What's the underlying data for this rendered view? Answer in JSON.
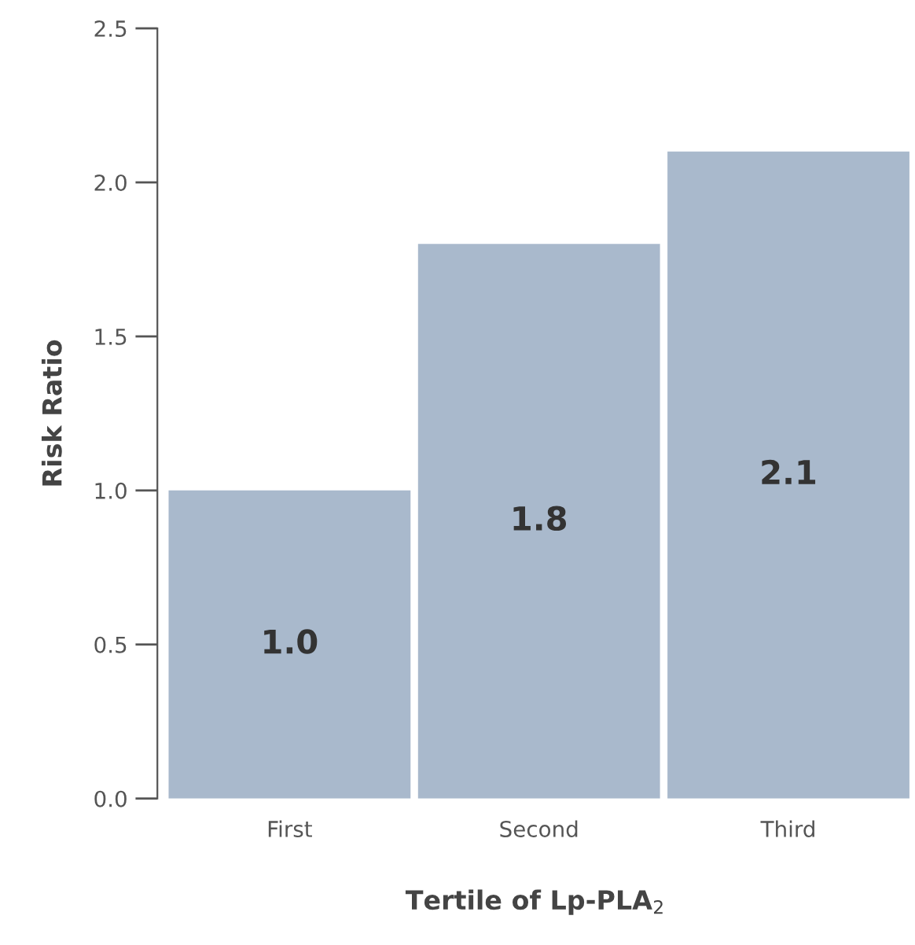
{
  "chart_data": {
    "type": "bar",
    "xlabel": "Tertile of Lp-PLA$_{2}$",
    "ylabel": "Risk Ratio",
    "categories": [
      "First",
      "Second",
      "Third"
    ],
    "values": [
      1.0,
      1.8,
      2.1
    ],
    "color": "#a9b9cc",
    "ylim": [
      0,
      2.5
    ],
    "yticks": [
      {
        "value": 0,
        "label": "0.0"
      },
      0.5,
      {
        "value": 1,
        "label": "1.0"
      },
      1.5,
      {
        "value": 2,
        "label": "2.0"
      },
      2.5
    ],
    "value_labels": [
      "1.0",
      "1.8",
      "2.1"
    ],
    "grid": false,
    "legend": false
  }
}
